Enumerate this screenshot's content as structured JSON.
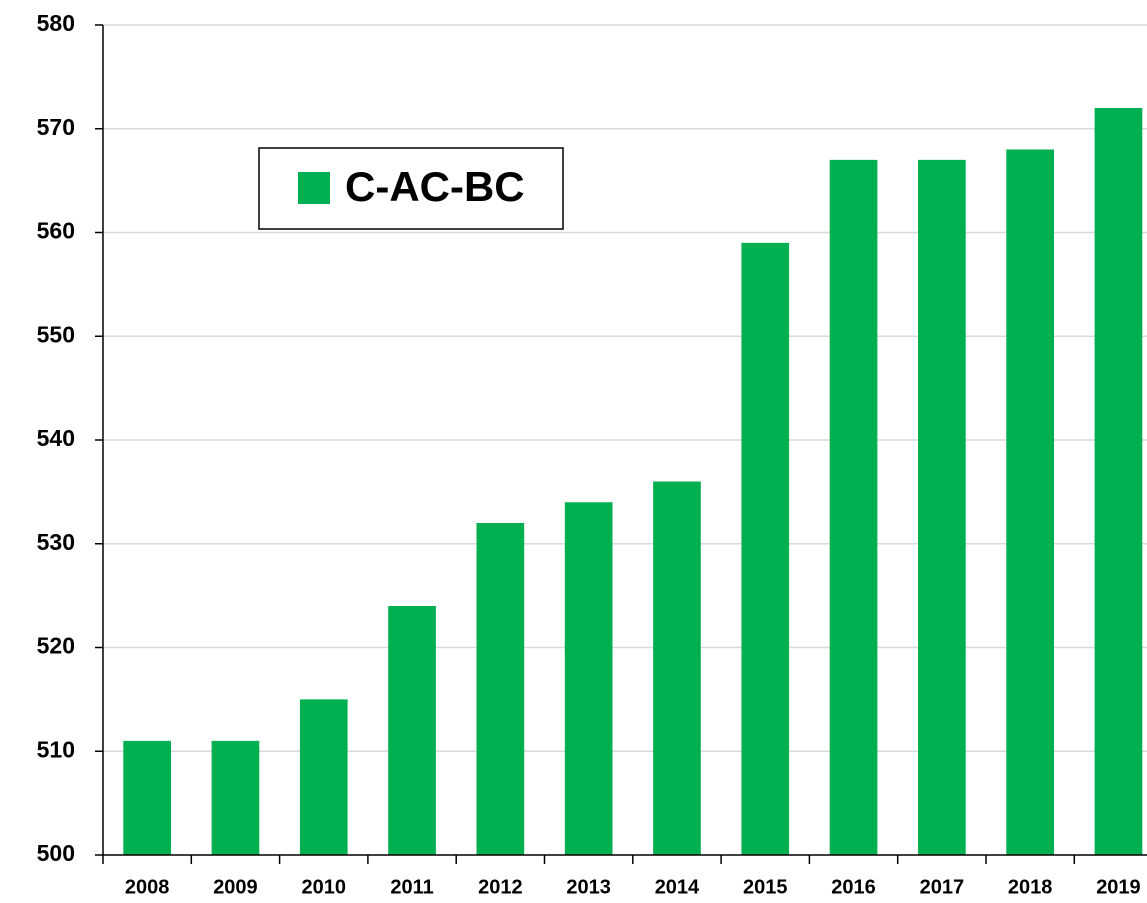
{
  "chart_data": {
    "type": "bar",
    "categories": [
      "2008",
      "2009",
      "2010",
      "2011",
      "2012",
      "2013",
      "2014",
      "2015",
      "2016",
      "2017",
      "2018",
      "2019"
    ],
    "series": [
      {
        "name": "C-AC-BC",
        "color": "#00b050",
        "values": [
          511,
          511,
          515,
          524,
          532,
          534,
          536,
          559,
          567,
          567,
          568,
          572
        ]
      }
    ],
    "ylim": [
      500,
      580
    ],
    "yticks": [
      500,
      510,
      520,
      530,
      540,
      550,
      560,
      570,
      580
    ],
    "grid": true,
    "legend": "upper left"
  }
}
